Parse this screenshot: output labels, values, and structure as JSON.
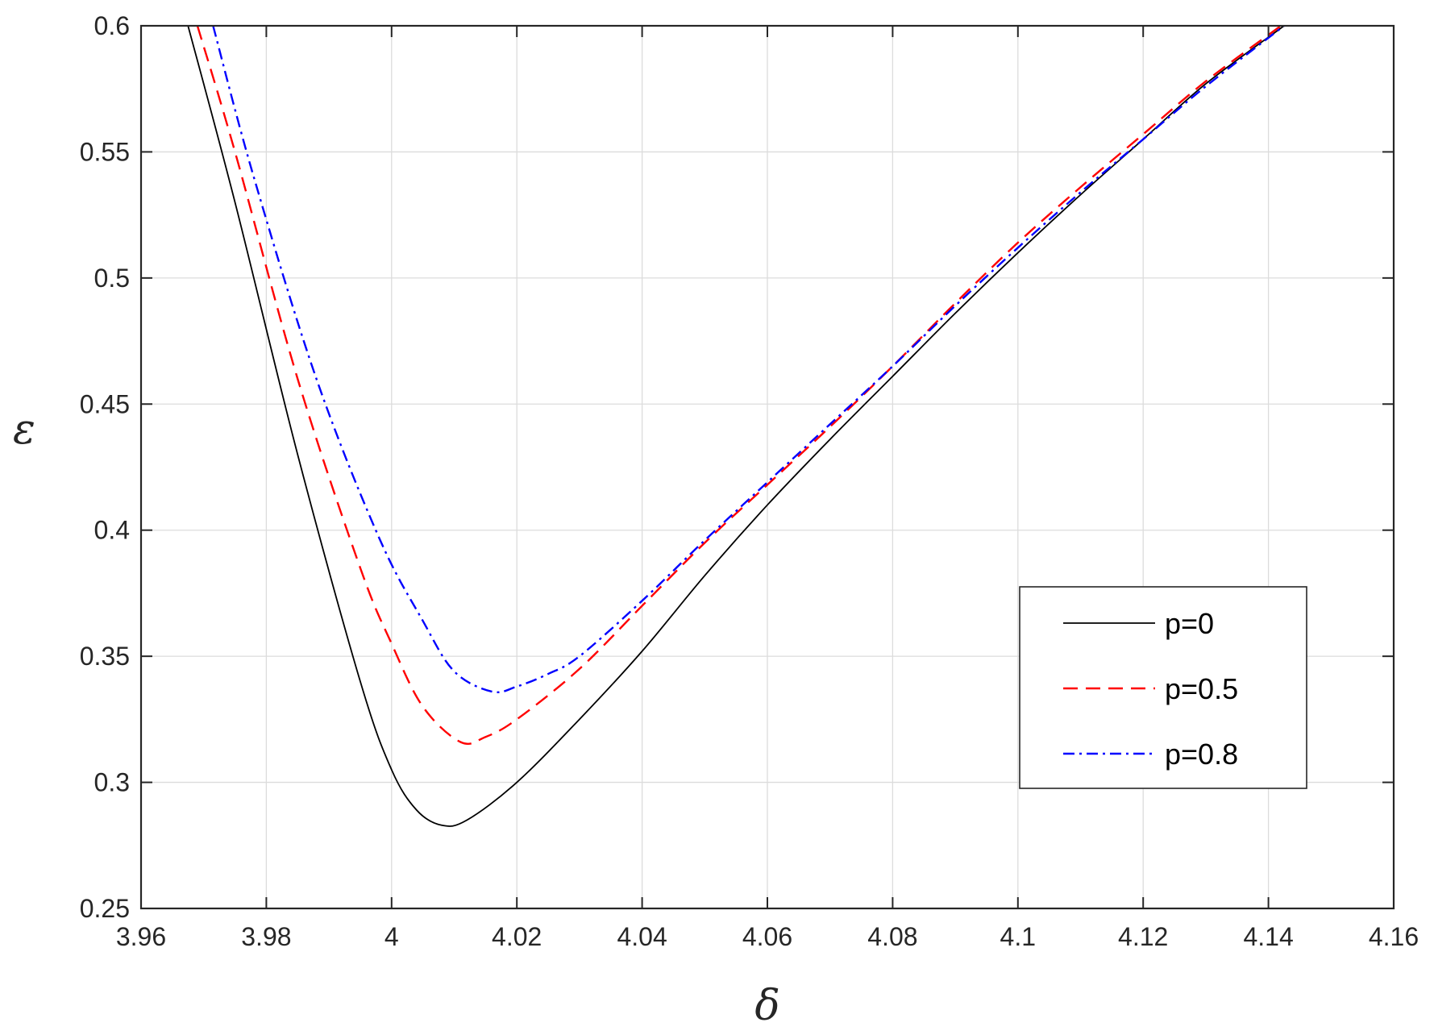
{
  "chart_data": {
    "type": "line",
    "title": "",
    "xlabel": "δ",
    "ylabel": "ε",
    "xlim": [
      3.96,
      4.16
    ],
    "ylim": [
      0.25,
      0.6
    ],
    "xticks": [
      "3.96",
      "3.98",
      "4",
      "4.02",
      "4.04",
      "4.06",
      "4.08",
      "4.1",
      "4.12",
      "4.14",
      "4.16"
    ],
    "yticks": [
      "0.25",
      "0.3",
      "0.35",
      "0.4",
      "0.45",
      "0.5",
      "0.55",
      "0.6"
    ],
    "grid": true,
    "legend_position": "lower-right",
    "series": [
      {
        "name": "p=0",
        "color": "#000000",
        "dash": "solid",
        "x": [
          3.9675,
          3.975,
          3.985,
          3.995,
          4.0,
          4.004,
          4.008,
          4.012,
          4.02,
          4.03,
          4.04,
          4.05,
          4.06,
          4.07,
          4.08,
          4.09,
          4.1,
          4.11,
          4.12,
          4.13,
          4.1425
        ],
        "y": [
          0.6,
          0.53,
          0.43,
          0.34,
          0.305,
          0.289,
          0.283,
          0.285,
          0.3,
          0.325,
          0.352,
          0.382,
          0.41,
          0.436,
          0.461,
          0.486,
          0.51,
          0.533,
          0.555,
          0.577,
          0.6
        ]
      },
      {
        "name": "p=0.5",
        "color": "#ff0000",
        "dash": "dashed",
        "x": [
          3.969,
          3.975,
          3.985,
          3.995,
          4.0,
          4.005,
          4.011,
          4.015,
          4.02,
          4.03,
          4.04,
          4.05,
          4.06,
          4.07,
          4.08,
          4.09,
          4.1,
          4.11,
          4.12,
          4.13,
          4.142
        ],
        "y": [
          0.6,
          0.55,
          0.46,
          0.385,
          0.355,
          0.33,
          0.316,
          0.318,
          0.325,
          0.345,
          0.37,
          0.395,
          0.418,
          0.441,
          0.465,
          0.49,
          0.514,
          0.536,
          0.557,
          0.578,
          0.6
        ]
      },
      {
        "name": "p=0.8",
        "color": "#0000ff",
        "dash": "dashdot",
        "x": [
          3.9715,
          3.978,
          3.988,
          3.998,
          4.005,
          4.01,
          4.016,
          4.02,
          4.025,
          4.03,
          4.04,
          4.05,
          4.06,
          4.07,
          4.08,
          4.09,
          4.1,
          4.11,
          4.12,
          4.13,
          4.1425
        ],
        "y": [
          0.6,
          0.54,
          0.46,
          0.397,
          0.364,
          0.344,
          0.336,
          0.338,
          0.343,
          0.35,
          0.372,
          0.396,
          0.419,
          0.442,
          0.465,
          0.489,
          0.512,
          0.534,
          0.555,
          0.576,
          0.6
        ]
      }
    ]
  }
}
